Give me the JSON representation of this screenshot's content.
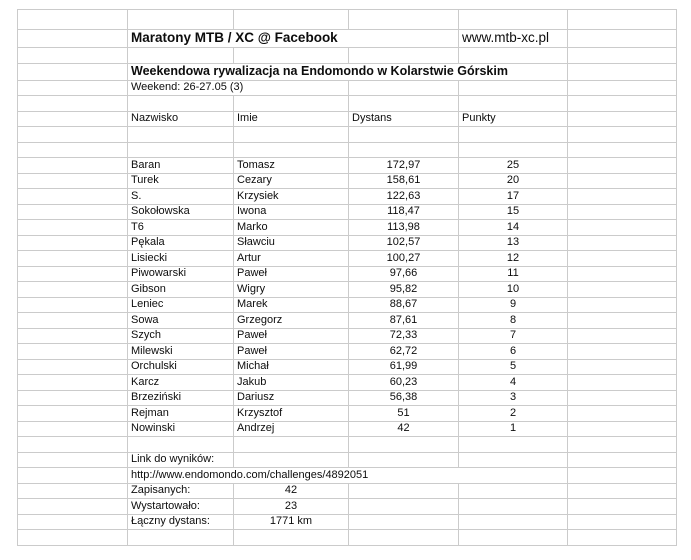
{
  "header": {
    "title": "Maratony MTB / XC @ Facebook",
    "website": "www.mtb-xc.pl",
    "subtitle": "Weekendowa rywalizacja na Endomondo w Kolarstwie Górskim",
    "weekend": "Weekend: 26-27.05 (3)"
  },
  "table": {
    "columns": {
      "nazwisko": "Nazwisko",
      "imie": "Imie",
      "dystans": "Dystans",
      "punkty": "Punkty"
    },
    "rows": [
      {
        "nazwisko": "Baran",
        "imie": "Tomasz",
        "dystans": "172,97",
        "punkty": "25"
      },
      {
        "nazwisko": "Turek",
        "imie": "Cezary",
        "dystans": "158,61",
        "punkty": "20"
      },
      {
        "nazwisko": "S.",
        "imie": "Krzysiek",
        "dystans": "122,63",
        "punkty": "17"
      },
      {
        "nazwisko": "Sokołowska",
        "imie": "Iwona",
        "dystans": "118,47",
        "punkty": "15"
      },
      {
        "nazwisko": "T6",
        "imie": "Marko",
        "dystans": "113,98",
        "punkty": "14"
      },
      {
        "nazwisko": "Pękala",
        "imie": "Sławciu",
        "dystans": "102,57",
        "punkty": "13"
      },
      {
        "nazwisko": "Lisiecki",
        "imie": "Artur",
        "dystans": "100,27",
        "punkty": "12"
      },
      {
        "nazwisko": "Piwowarski",
        "imie": "Paweł",
        "dystans": "97,66",
        "punkty": "11"
      },
      {
        "nazwisko": "Gibson",
        "imie": "Wigry",
        "dystans": "95,82",
        "punkty": "10"
      },
      {
        "nazwisko": "Leniec",
        "imie": "Marek",
        "dystans": "88,67",
        "punkty": "9"
      },
      {
        "nazwisko": "Sowa",
        "imie": "Grzegorz",
        "dystans": "87,61",
        "punkty": "8"
      },
      {
        "nazwisko": "Szych",
        "imie": "Paweł",
        "dystans": "72,33",
        "punkty": "7"
      },
      {
        "nazwisko": "Milewski",
        "imie": "Paweł",
        "dystans": "62,72",
        "punkty": "6"
      },
      {
        "nazwisko": "Orchulski",
        "imie": "Michał",
        "dystans": "61,99",
        "punkty": "5"
      },
      {
        "nazwisko": "Karcz",
        "imie": "Jakub",
        "dystans": "60,23",
        "punkty": "4"
      },
      {
        "nazwisko": "Brzeziński",
        "imie": "Dariusz",
        "dystans": "56,38",
        "punkty": "3"
      },
      {
        "nazwisko": "Rejman",
        "imie": "Krzysztof",
        "dystans": "51",
        "punkty": "2"
      },
      {
        "nazwisko": "Nowinski",
        "imie": "Andrzej",
        "dystans": "42",
        "punkty": "1"
      }
    ]
  },
  "footer": {
    "link_label": "Link do wyników:",
    "link_url": "http://www.endomondo.com/challenges/4892051",
    "stats": [
      {
        "label": "Zapisanych:",
        "value": "42"
      },
      {
        "label": "Wystartowało:",
        "value": "23"
      },
      {
        "label": "Łączny dystans:",
        "value": "1771 km"
      }
    ]
  },
  "colors": {
    "gridline": "#cbcbcb",
    "text": "#0d0d0d",
    "background": "#ffffff"
  }
}
